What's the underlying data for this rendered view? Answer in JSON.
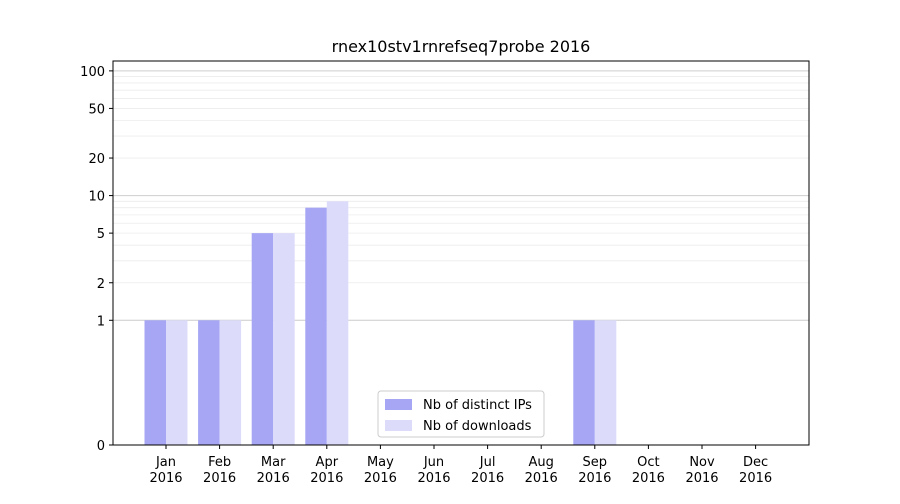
{
  "chart_data": {
    "type": "bar",
    "title": "rnex10stv1rnrefseq7probe 2016",
    "xlabel": "",
    "ylabel": "",
    "yscale": "symlog",
    "ylim": [
      0,
      120
    ],
    "yticks": [
      0,
      1,
      2,
      5,
      10,
      20,
      50,
      100
    ],
    "categories": [
      [
        "Jan",
        "2016"
      ],
      [
        "Feb",
        "2016"
      ],
      [
        "Mar",
        "2016"
      ],
      [
        "Apr",
        "2016"
      ],
      [
        "May",
        "2016"
      ],
      [
        "Jun",
        "2016"
      ],
      [
        "Jul",
        "2016"
      ],
      [
        "Aug",
        "2016"
      ],
      [
        "Sep",
        "2016"
      ],
      [
        "Oct",
        "2016"
      ],
      [
        "Nov",
        "2016"
      ],
      [
        "Dec",
        "2016"
      ]
    ],
    "series": [
      {
        "name": "Nb of distinct IPs",
        "color": "#a6a6f5",
        "values": [
          1,
          1,
          5,
          8,
          0,
          0,
          0,
          0,
          1,
          0,
          0,
          0
        ]
      },
      {
        "name": "Nb of downloads",
        "color": "#dcdcfa",
        "values": [
          1,
          1,
          5,
          9,
          0,
          0,
          0,
          0,
          1,
          0,
          0,
          0
        ]
      }
    ],
    "legend_position": "lower-center",
    "grid": true
  }
}
